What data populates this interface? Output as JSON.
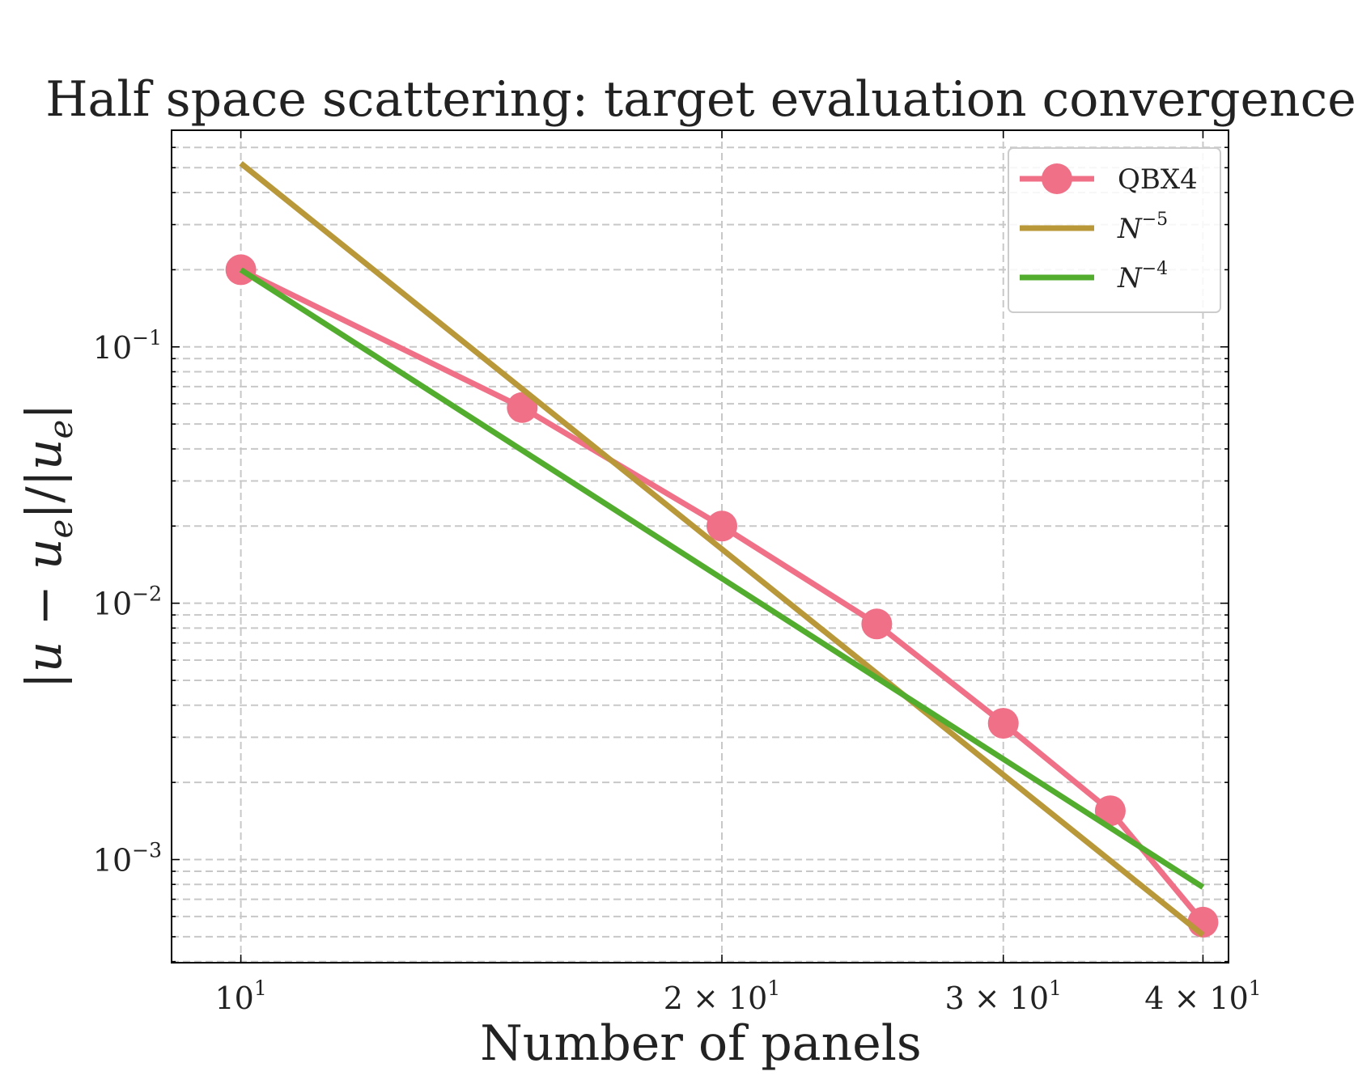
{
  "chart_data": {
    "type": "line",
    "title": "Half space scattering: target evaluation convergence",
    "xlabel": "Number of panels",
    "ylabel": "|u − u_e|/|u_e|",
    "xscale": "log",
    "yscale": "log",
    "xlim": [
      9.05,
      41.5
    ],
    "ylim": [
      0.000396,
      0.7
    ],
    "grid": true,
    "legend_position": "top-right",
    "x_ticks": [
      {
        "value": 10,
        "mantissa": "",
        "base": "10",
        "exp": "1"
      },
      {
        "value": 20,
        "mantissa": "2 × ",
        "base": "10",
        "exp": "1"
      },
      {
        "value": 30,
        "mantissa": "3 × ",
        "base": "10",
        "exp": "1"
      },
      {
        "value": 40,
        "mantissa": "4 × ",
        "base": "10",
        "exp": "1"
      }
    ],
    "y_ticks": [
      {
        "value": 0.1,
        "base": "10",
        "exp": "−1"
      },
      {
        "value": 0.01,
        "base": "10",
        "exp": "−2"
      },
      {
        "value": 0.001,
        "base": "10",
        "exp": "−3"
      }
    ],
    "series": [
      {
        "name": "QBX4",
        "color": "#f07088",
        "markers": true,
        "x": [
          10,
          15,
          20,
          25,
          30,
          35,
          40
        ],
        "y": [
          0.2,
          0.058,
          0.02,
          0.0083,
          0.0034,
          0.00155,
          0.00057
        ]
      },
      {
        "name": "N^{−5}",
        "legend_base": "N",
        "legend_exp": "−5",
        "color": "#b89838",
        "markers": false,
        "x": [
          10,
          40
        ],
        "y": [
          0.52,
          0.000508
        ]
      },
      {
        "name": "N^{−4}",
        "legend_base": "N",
        "legend_exp": "−4",
        "color": "#52ad2e",
        "markers": false,
        "x": [
          10,
          40
        ],
        "y": [
          0.2,
          0.00078
        ]
      }
    ]
  }
}
